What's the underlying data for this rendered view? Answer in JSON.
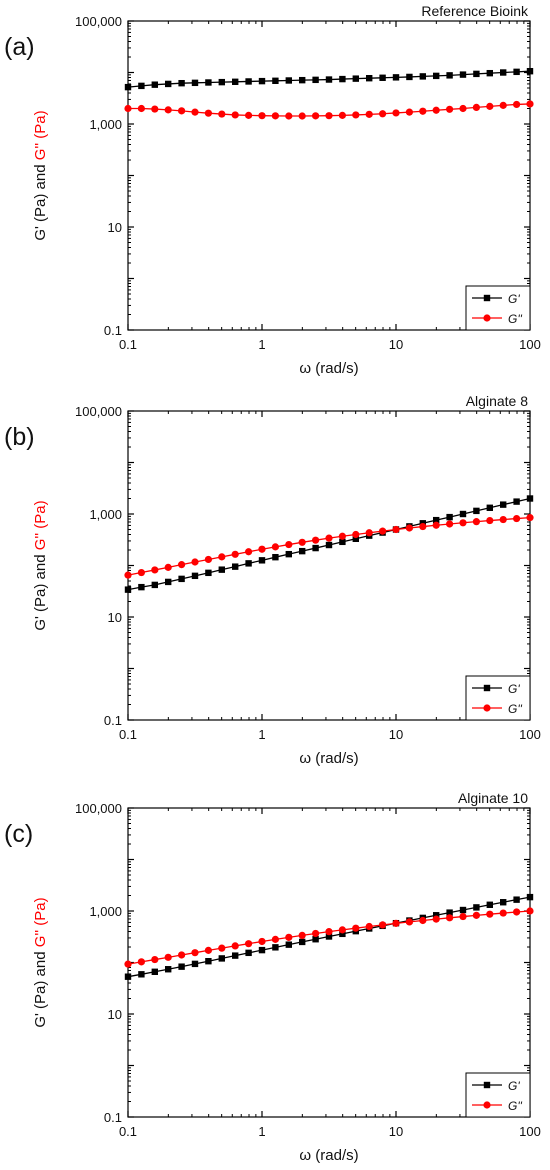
{
  "colors": {
    "g_prime": "#000000",
    "g_double_prime": "#ff0000",
    "axis": "#000000"
  },
  "chart_data": [
    {
      "type": "line",
      "panel_label": "(a)",
      "title": "Reference Bioink",
      "xlabel": "ω (rad/s)",
      "ylabel_parts": [
        "G' (Pa) and ",
        "G'' (Pa)"
      ],
      "xscale": "log",
      "yscale": "log",
      "xlim": [
        0.1,
        100
      ],
      "ylim": [
        0.1,
        100000
      ],
      "xticks": [
        "0.1",
        "1",
        "10",
        "100"
      ],
      "yticks": [
        "0.1",
        "10",
        "1,000",
        "100,000"
      ],
      "legend_position": "bottom-right",
      "series": [
        {
          "name": "G'",
          "marker": "square",
          "color": "#000000",
          "x": [
            0.1,
            0.1259,
            0.1585,
            0.1995,
            0.2512,
            0.3162,
            0.3981,
            0.5012,
            0.631,
            0.7943,
            1,
            1.259,
            1.585,
            1.995,
            2.512,
            3.162,
            3.981,
            5.012,
            6.31,
            7.943,
            10,
            12.59,
            15.85,
            19.95,
            25.12,
            31.62,
            39.81,
            50.12,
            63.1,
            79.43,
            100
          ],
          "y": [
            5200,
            5500,
            5800,
            6000,
            6200,
            6300,
            6400,
            6500,
            6600,
            6700,
            6800,
            6900,
            7000,
            7100,
            7200,
            7300,
            7450,
            7600,
            7750,
            7900,
            8050,
            8200,
            8400,
            8600,
            8800,
            9100,
            9400,
            9700,
            10000,
            10300,
            10600
          ]
        },
        {
          "name": "G''",
          "marker": "circle",
          "color": "#ff0000",
          "x": [
            0.1,
            0.1259,
            0.1585,
            0.1995,
            0.2512,
            0.3162,
            0.3981,
            0.5012,
            0.631,
            0.7943,
            1,
            1.259,
            1.585,
            1.995,
            2.512,
            3.162,
            3.981,
            5.012,
            6.31,
            7.943,
            10,
            12.59,
            15.85,
            19.95,
            25.12,
            31.62,
            39.81,
            50.12,
            63.1,
            79.43,
            100
          ],
          "y": [
            2000,
            2000,
            1950,
            1880,
            1800,
            1700,
            1620,
            1560,
            1500,
            1470,
            1450,
            1440,
            1430,
            1430,
            1440,
            1450,
            1470,
            1500,
            1540,
            1580,
            1640,
            1700,
            1770,
            1850,
            1930,
            2000,
            2100,
            2200,
            2300,
            2400,
            2450
          ]
        }
      ]
    },
    {
      "type": "line",
      "panel_label": "(b)",
      "title": "Alginate 8",
      "xlabel": "ω (rad/s)",
      "ylabel_parts": [
        "G' (Pa) and ",
        "G'' (Pa)"
      ],
      "xscale": "log",
      "yscale": "log",
      "xlim": [
        0.1,
        100
      ],
      "ylim": [
        0.1,
        100000
      ],
      "xticks": [
        "0.1",
        "1",
        "10",
        "100"
      ],
      "yticks": [
        "0.1",
        "10",
        "1,000",
        "100,000"
      ],
      "legend_position": "bottom-right",
      "series": [
        {
          "name": "G'",
          "marker": "square",
          "color": "#000000",
          "x": [
            0.1,
            0.1259,
            0.1585,
            0.1995,
            0.2512,
            0.3162,
            0.3981,
            0.5012,
            0.631,
            0.7943,
            1,
            1.259,
            1.585,
            1.995,
            2.512,
            3.162,
            3.981,
            5.012,
            6.31,
            7.943,
            10,
            12.59,
            15.85,
            19.95,
            25.12,
            31.62,
            39.81,
            50.12,
            63.1,
            79.43,
            100
          ],
          "y": [
            34,
            38,
            42,
            48,
            55,
            63,
            72,
            83,
            95,
            110,
            126,
            145,
            166,
            190,
            218,
            250,
            288,
            330,
            380,
            436,
            500,
            575,
            660,
            760,
            870,
            1000,
            1150,
            1320,
            1520,
            1740,
            2000
          ]
        },
        {
          "name": "G''",
          "marker": "circle",
          "color": "#ff0000",
          "x": [
            0.1,
            0.1259,
            0.1585,
            0.1995,
            0.2512,
            0.3162,
            0.3981,
            0.5012,
            0.631,
            0.7943,
            1,
            1.259,
            1.585,
            1.995,
            2.512,
            3.162,
            3.981,
            5.012,
            6.31,
            7.943,
            10,
            12.59,
            15.85,
            19.95,
            25.12,
            31.62,
            39.81,
            50.12,
            63.1,
            79.43,
            100
          ],
          "y": [
            65,
            73,
            82,
            92,
            104,
            117,
            131,
            147,
            165,
            185,
            207,
            230,
            255,
            282,
            310,
            340,
            370,
            400,
            432,
            465,
            500,
            535,
            570,
            605,
            640,
            675,
            710,
            745,
            780,
            815,
            850
          ]
        }
      ]
    },
    {
      "type": "line",
      "panel_label": "(c)",
      "title": "Alginate 10",
      "xlabel": "ω (rad/s)",
      "ylabel_parts": [
        "G' (Pa) and ",
        "G'' (Pa)"
      ],
      "xscale": "log",
      "yscale": "log",
      "xlim": [
        0.1,
        100
      ],
      "ylim": [
        0.1,
        100000
      ],
      "xticks": [
        "0.1",
        "1",
        "10",
        "100"
      ],
      "yticks": [
        "0.1",
        "10",
        "1,000",
        "100,000"
      ],
      "legend_position": "bottom-right",
      "series": [
        {
          "name": "G'",
          "marker": "square",
          "color": "#000000",
          "x": [
            0.1,
            0.1259,
            0.1585,
            0.1995,
            0.2512,
            0.3162,
            0.3981,
            0.5012,
            0.631,
            0.7943,
            1,
            1.259,
            1.585,
            1.995,
            2.512,
            3.162,
            3.981,
            5.012,
            6.31,
            7.943,
            10,
            12.59,
            15.85,
            19.95,
            25.12,
            31.62,
            39.81,
            50.12,
            63.1,
            79.43,
            100
          ],
          "y": [
            53,
            59,
            66,
            74,
            83,
            94,
            106,
            120,
            136,
            154,
            174,
            197,
            222,
            251,
            283,
            320,
            360,
            406,
            458,
            515,
            580,
            653,
            735,
            827,
            930,
            1045,
            1175,
            1320,
            1480,
            1660,
            1860
          ]
        },
        {
          "name": "G''",
          "marker": "circle",
          "color": "#ff0000",
          "x": [
            0.1,
            0.1259,
            0.1585,
            0.1995,
            0.2512,
            0.3162,
            0.3981,
            0.5012,
            0.631,
            0.7943,
            1,
            1.259,
            1.585,
            1.995,
            2.512,
            3.162,
            3.981,
            5.012,
            6.31,
            7.943,
            10,
            12.59,
            15.85,
            19.95,
            25.12,
            31.62,
            39.81,
            50.12,
            63.1,
            79.43,
            100
          ],
          "y": [
            93,
            103,
            114,
            126,
            140,
            155,
            172,
            190,
            210,
            232,
            256,
            281,
            308,
            336,
            366,
            397,
            430,
            464,
            500,
            537,
            575,
            614,
            654,
            695,
            737,
            780,
            823,
            867,
            912,
            957,
            1000
          ]
        }
      ]
    }
  ]
}
